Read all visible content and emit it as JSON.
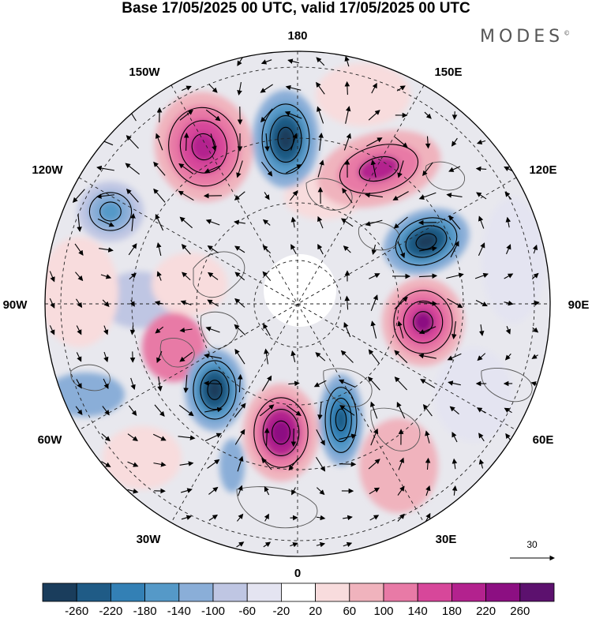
{
  "title": "Base 17/05/2025 00 UTC, valid 17/05/2025 00 UTC",
  "brand": {
    "name": "MODES",
    "mark": "©"
  },
  "map": {
    "projection": "north-polar-stereographic",
    "longitude_labels": {
      "top": "180",
      "top_right": "150E",
      "right_upper": "120E",
      "right": "90E",
      "right_lower": "60E",
      "bottom_right": "30E",
      "bottom": "0",
      "bottom_left": "30W",
      "left_lower": "60W",
      "left": "90W",
      "left_upper": "120W",
      "top_left": "150W"
    },
    "wind_reference": {
      "label": "30"
    },
    "anomaly_centres": [
      {
        "name": "north-pacific-low",
        "sign": "negative",
        "level": -260
      },
      {
        "name": "gulf-of-alaska-high",
        "sign": "positive",
        "level": 220
      },
      {
        "name": "east-siberia-high",
        "sign": "positive",
        "level": 200
      },
      {
        "name": "central-siberia-low",
        "sign": "negative",
        "level": -260
      },
      {
        "name": "west-siberia-high",
        "sign": "positive",
        "level": 240
      },
      {
        "name": "scandinavia-low",
        "sign": "negative",
        "level": -220
      },
      {
        "name": "north-atlantic-low",
        "sign": "negative",
        "level": -260
      },
      {
        "name": "east-atlantic-high",
        "sign": "positive",
        "level": 260
      },
      {
        "name": "canada-low",
        "sign": "negative",
        "level": -160
      }
    ]
  },
  "colorbar": {
    "labels": [
      "-260",
      "-220",
      "-180",
      "-140",
      "-100",
      "-60",
      "-20",
      "20",
      "60",
      "100",
      "140",
      "180",
      "220",
      "260"
    ],
    "colors": [
      "#1a3d5c",
      "#1f5b86",
      "#3380b5",
      "#5599c8",
      "#8aaed8",
      "#bfc6e3",
      "#e4e4f1",
      "#ffffff",
      "#f8dcdd",
      "#f0b3bd",
      "#e87aa6",
      "#d7479a",
      "#b3228e",
      "#8c0f82",
      "#5c116e"
    ]
  }
}
